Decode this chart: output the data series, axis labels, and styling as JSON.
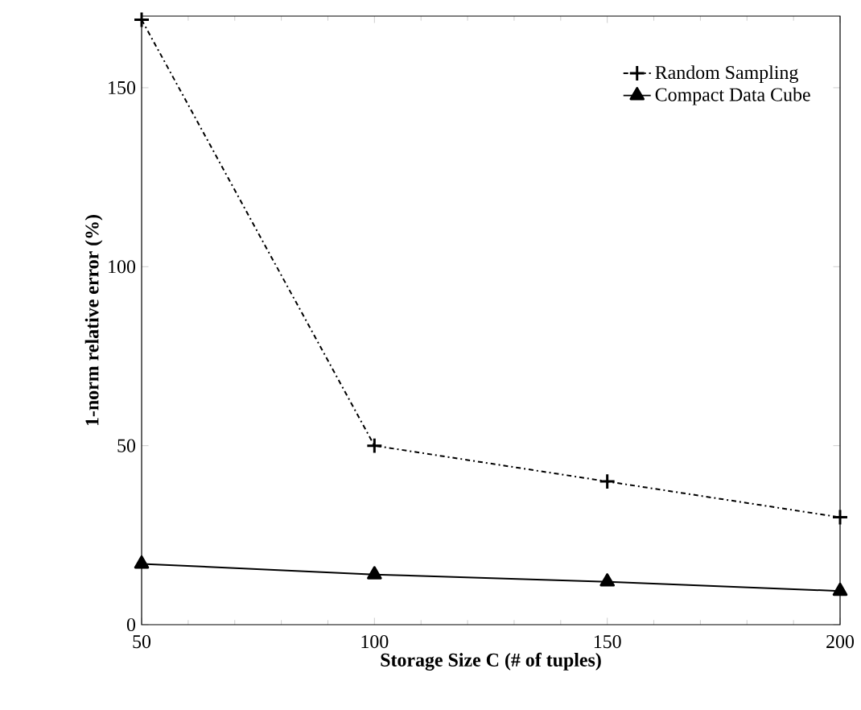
{
  "chart_data": {
    "type": "line",
    "xlabel": "Storage Size C (# of tuples)",
    "ylabel": "1-norm relative error (%)",
    "x": [
      50,
      100,
      150,
      200
    ],
    "series": [
      {
        "name": "Random Sampling",
        "color": "#000000",
        "values": [
          169,
          50,
          40,
          30
        ],
        "marker": "cross",
        "line_style": "dashed"
      },
      {
        "name": "Compact Data Cube",
        "color": "#000000",
        "values": [
          17,
          14,
          12,
          9.4
        ],
        "marker": "triangle",
        "line_style": "solid"
      }
    ],
    "xlim": [
      50,
      200
    ],
    "xticks": [
      50,
      100,
      150,
      200
    ],
    "ylim": [
      0,
      170
    ],
    "yticks": [
      0,
      50,
      100,
      150
    ],
    "grid": false,
    "legend": "top right"
  }
}
